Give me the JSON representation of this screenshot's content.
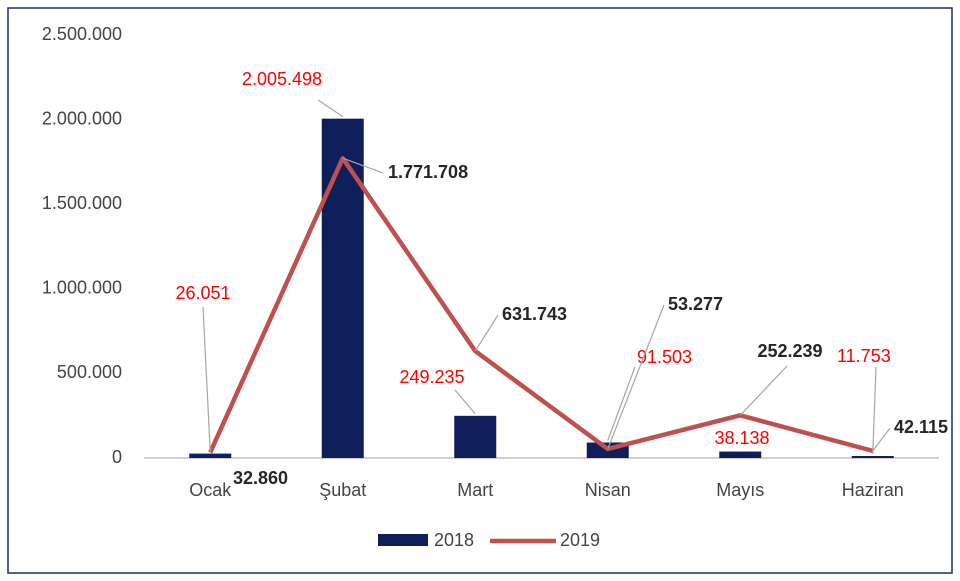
{
  "chart_data": {
    "type": "bar",
    "categories": [
      "Ocak",
      "Şubat",
      "Mart",
      "Nisan",
      "Mayıs",
      "Haziran"
    ],
    "series": [
      {
        "name": "2018",
        "type": "bar",
        "color": "#0f1f5c",
        "values": [
          26051,
          2005498,
          249235,
          91503,
          38138,
          11753
        ],
        "value_labels": [
          "26.051",
          "2.005.498",
          "249.235",
          "91.503",
          "38.138",
          "11.753"
        ]
      },
      {
        "name": "2019",
        "type": "line",
        "color": "#c0504d",
        "values": [
          32860,
          1771708,
          631743,
          53277,
          252239,
          42115
        ],
        "value_labels": [
          "32.860",
          "1.771.708",
          "631.743",
          "53.277",
          "252.239",
          "42.115"
        ]
      }
    ],
    "ylim": [
      0,
      2500000
    ],
    "yticks": [
      0,
      {
        "value": 500000,
        "label": "500.000"
      },
      {
        "value": 1000000,
        "label": "1.000.000"
      },
      {
        "value": 1500000,
        "label": "1.500.000"
      },
      {
        "value": 2000000,
        "label": "2.000.000"
      },
      {
        "value": 2500000,
        "label": "2.500.000"
      }
    ],
    "legend": "bottom"
  }
}
